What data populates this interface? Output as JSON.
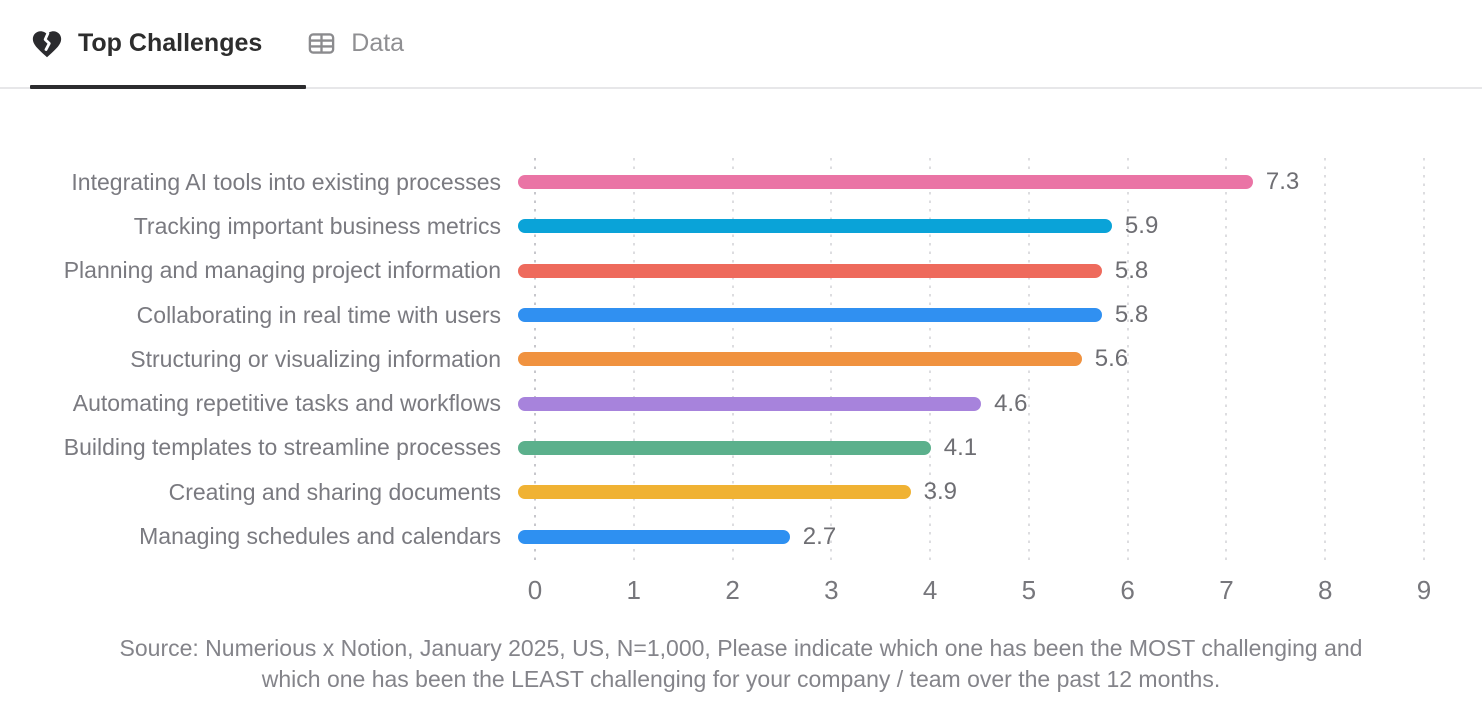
{
  "tabs": [
    {
      "label": "Top Challenges",
      "icon": "broken-heart-icon",
      "active": true
    },
    {
      "label": "Data",
      "icon": "table-icon",
      "active": false
    }
  ],
  "chart_data": {
    "type": "bar",
    "orientation": "horizontal",
    "categories": [
      "Integrating AI tools into existing processes",
      "Tracking important business metrics",
      "Planning and managing project information",
      "Collaborating in real time with users",
      "Structuring or visualizing information",
      "Automating repetitive tasks and workflows",
      "Building templates to streamline processes",
      "Creating and sharing documents",
      "Managing schedules and calendars"
    ],
    "values": [
      7.3,
      5.9,
      5.8,
      5.8,
      5.6,
      4.6,
      4.1,
      3.9,
      2.7
    ],
    "value_labels": [
      "7.3",
      "5.9",
      "5.8",
      "5.8",
      "5.6",
      "4.6",
      "4.1",
      "3.9",
      "2.7"
    ],
    "colors": [
      "#ea74a5",
      "#0aa3d8",
      "#ee6a5c",
      "#3090f1",
      "#f0923f",
      "#a783dc",
      "#5bb08c",
      "#f0b233",
      "#2e90f1"
    ],
    "x_ticks": [
      "0",
      "1",
      "2",
      "3",
      "4",
      "5",
      "6",
      "7",
      "8",
      "9"
    ],
    "xlim": [
      0,
      9
    ],
    "grid": "vertical-dotted",
    "legend": "none",
    "title": "",
    "xlabel": "",
    "ylabel": "",
    "source_line1": "Source: Numerious x Notion, January 2025, US, N=1,000, Please indicate which one has been the MOST challenging and",
    "source_line2": "which one has been the LEAST challenging for your company /  team over the past 12 months."
  }
}
